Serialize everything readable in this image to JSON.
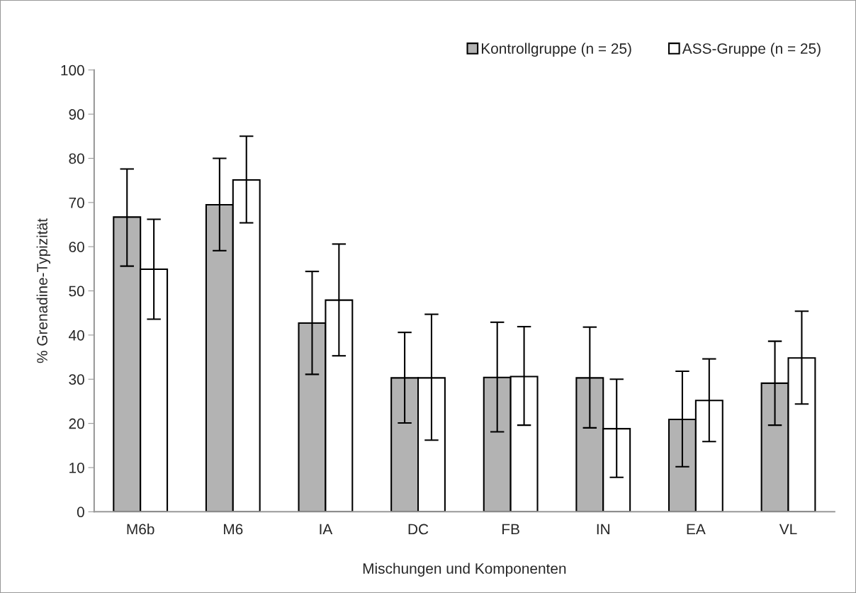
{
  "chart_data": {
    "type": "bar",
    "categories": [
      "M6b",
      "M6",
      "IA",
      "DC",
      "FB",
      "IN",
      "EA",
      "VL"
    ],
    "xlabel": "Mischungen und Komponenten",
    "ylabel": "% Grenadine-Typizität",
    "ylim": [
      0,
      100
    ],
    "yticks": [
      0,
      10,
      20,
      30,
      40,
      50,
      60,
      70,
      80,
      90,
      100
    ],
    "grid": false,
    "legend": "top right",
    "series": [
      {
        "name": "Kontrollgruppe (n = 25)",
        "color": "#b3b3b3",
        "values": [
          66.7,
          69.5,
          42.7,
          30.3,
          30.4,
          30.3,
          20.9,
          29.1
        ],
        "errors": [
          [
            55.6,
            77.6
          ],
          [
            59.1,
            80.0
          ],
          [
            31.1,
            54.4
          ],
          [
            20.1,
            40.6
          ],
          [
            18.1,
            42.9
          ],
          [
            19.0,
            41.8
          ],
          [
            10.2,
            31.8
          ],
          [
            19.6,
            38.6
          ]
        ]
      },
      {
        "name": "ASS-Gruppe (n = 25)",
        "color": "#ffffff",
        "values": [
          54.9,
          75.1,
          47.9,
          30.3,
          30.6,
          18.8,
          25.2,
          34.8
        ],
        "errors": [
          [
            43.6,
            66.2
          ],
          [
            65.4,
            85.0
          ],
          [
            35.3,
            60.6
          ],
          [
            16.2,
            44.7
          ],
          [
            19.6,
            41.9
          ],
          [
            7.8,
            30.0
          ],
          [
            15.9,
            34.6
          ],
          [
            24.4,
            45.4
          ]
        ]
      }
    ]
  }
}
